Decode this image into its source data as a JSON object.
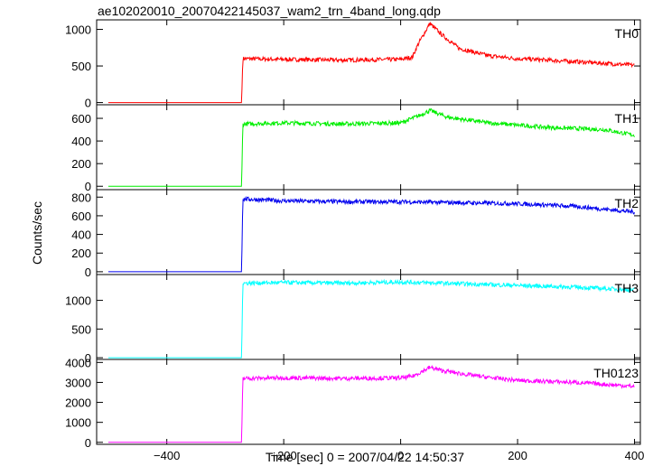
{
  "chart_data": {
    "type": "line",
    "title": "ae102020010_20070422145037_wam2_trn_4band_long.qdp",
    "xlabel": "Time [sec] 0 = 2007/04/22 14:50:37",
    "ylabel": "Counts/sec",
    "xlim": [
      -520,
      410
    ],
    "x_ticks": [
      -400,
      -200,
      0,
      200,
      400
    ],
    "x_tick_labels": [
      "−400",
      "−200",
      "0",
      "200",
      "400"
    ],
    "panels": [
      {
        "name": "TH0",
        "color": "#ff0000",
        "ylim": [
          -30,
          1130
        ],
        "y_ticks": [
          0,
          500,
          1000
        ],
        "y_tick_labels": [
          "0",
          "500",
          "1000"
        ],
        "points": [
          [
            -500,
            0
          ],
          [
            -272,
            0
          ],
          [
            -270,
            600
          ],
          [
            -200,
            590
          ],
          [
            -100,
            580
          ],
          [
            0,
            590
          ],
          [
            20,
            620
          ],
          [
            30,
            800
          ],
          [
            50,
            1080
          ],
          [
            70,
            930
          ],
          [
            100,
            740
          ],
          [
            150,
            640
          ],
          [
            200,
            600
          ],
          [
            300,
            560
          ],
          [
            400,
            510
          ]
        ]
      },
      {
        "name": "TH1",
        "color": "#00ee00",
        "ylim": [
          -30,
          720
        ],
        "y_ticks": [
          0,
          200,
          400,
          600
        ],
        "y_tick_labels": [
          "0",
          "200",
          "400",
          "600"
        ],
        "points": [
          [
            -500,
            0
          ],
          [
            -272,
            0
          ],
          [
            -270,
            550
          ],
          [
            -200,
            560
          ],
          [
            -100,
            550
          ],
          [
            0,
            560
          ],
          [
            30,
            620
          ],
          [
            50,
            670
          ],
          [
            80,
            610
          ],
          [
            150,
            560
          ],
          [
            250,
            520
          ],
          [
            350,
            500
          ],
          [
            400,
            450
          ]
        ]
      },
      {
        "name": "TH2",
        "color": "#0000ee",
        "ylim": [
          -30,
          880
        ],
        "y_ticks": [
          0,
          200,
          400,
          600,
          800
        ],
        "y_tick_labels": [
          "0",
          "200",
          "400",
          "600",
          "800"
        ],
        "points": [
          [
            -500,
            0
          ],
          [
            -272,
            0
          ],
          [
            -270,
            780
          ],
          [
            -200,
            760
          ],
          [
            -100,
            750
          ],
          [
            0,
            750
          ],
          [
            100,
            740
          ],
          [
            200,
            730
          ],
          [
            300,
            700
          ],
          [
            400,
            640
          ]
        ]
      },
      {
        "name": "TH3",
        "color": "#00ffff",
        "ylim": [
          -30,
          1450
        ],
        "y_ticks": [
          0,
          500,
          1000
        ],
        "y_tick_labels": [
          "0",
          "500",
          "1000"
        ],
        "points": [
          [
            -500,
            0
          ],
          [
            -272,
            0
          ],
          [
            -270,
            1300
          ],
          [
            -200,
            1310
          ],
          [
            -100,
            1300
          ],
          [
            0,
            1320
          ],
          [
            100,
            1290
          ],
          [
            200,
            1260
          ],
          [
            300,
            1230
          ],
          [
            400,
            1180
          ]
        ]
      },
      {
        "name": "TH0123",
        "color": "#ff00ff",
        "ylim": [
          -100,
          4150
        ],
        "y_ticks": [
          0,
          1000,
          2000,
          3000,
          4000
        ],
        "y_tick_labels": [
          "0",
          "1000",
          "2000",
          "3000",
          "4000"
        ],
        "points": [
          [
            -500,
            0
          ],
          [
            -272,
            0
          ],
          [
            -270,
            3200
          ],
          [
            -200,
            3230
          ],
          [
            -100,
            3200
          ],
          [
            0,
            3220
          ],
          [
            20,
            3300
          ],
          [
            50,
            3750
          ],
          [
            70,
            3600
          ],
          [
            100,
            3450
          ],
          [
            150,
            3250
          ],
          [
            200,
            3100
          ],
          [
            300,
            3000
          ],
          [
            400,
            2800
          ]
        ]
      }
    ]
  }
}
